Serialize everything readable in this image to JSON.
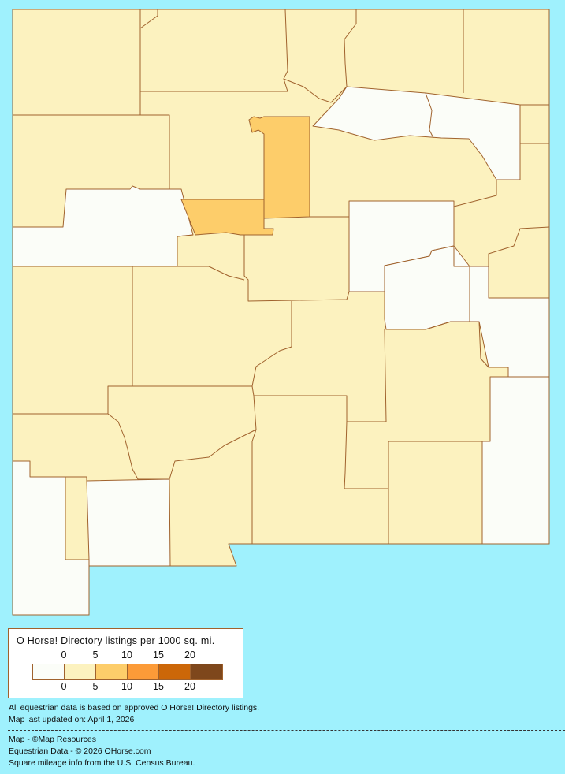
{
  "colors": {
    "background": "#9ff1fd",
    "border": "#a0622d",
    "class_0": "#fbfdf8",
    "class_1": "#fcf2bf",
    "class_2": "#fdcd6a",
    "class_3": "#fc9b38",
    "class_4": "#cc6708",
    "class_5": "#7e471c"
  },
  "legend": {
    "title": "O Horse! Directory listings per 1000 sq. mi.",
    "top_ticks": [
      "0",
      "5",
      "10",
      "15",
      "20"
    ],
    "bottom_ticks": [
      "0",
      "5",
      "10",
      "15",
      "20"
    ],
    "classes": [
      {
        "range": "0",
        "color": "#fbfdf8"
      },
      {
        "range": "0-5",
        "color": "#fcf2bf"
      },
      {
        "range": "5-10",
        "color": "#fdcd6a"
      },
      {
        "range": "10-15",
        "color": "#fc9b38"
      },
      {
        "range": "15-20",
        "color": "#cc6708"
      },
      {
        "range": "20+",
        "color": "#7e471c"
      }
    ]
  },
  "notes": {
    "data_basis": "All equestrian data is based on approved O Horse! Directory listings.",
    "updated": "Map last updated on: April 1, 2026"
  },
  "credits": {
    "map": "Map - ©Map Resources",
    "data": "Equestrian Data - © 2026 OHorse.com",
    "census": "Square mileage info from the U.S. Census Bureau."
  }
}
